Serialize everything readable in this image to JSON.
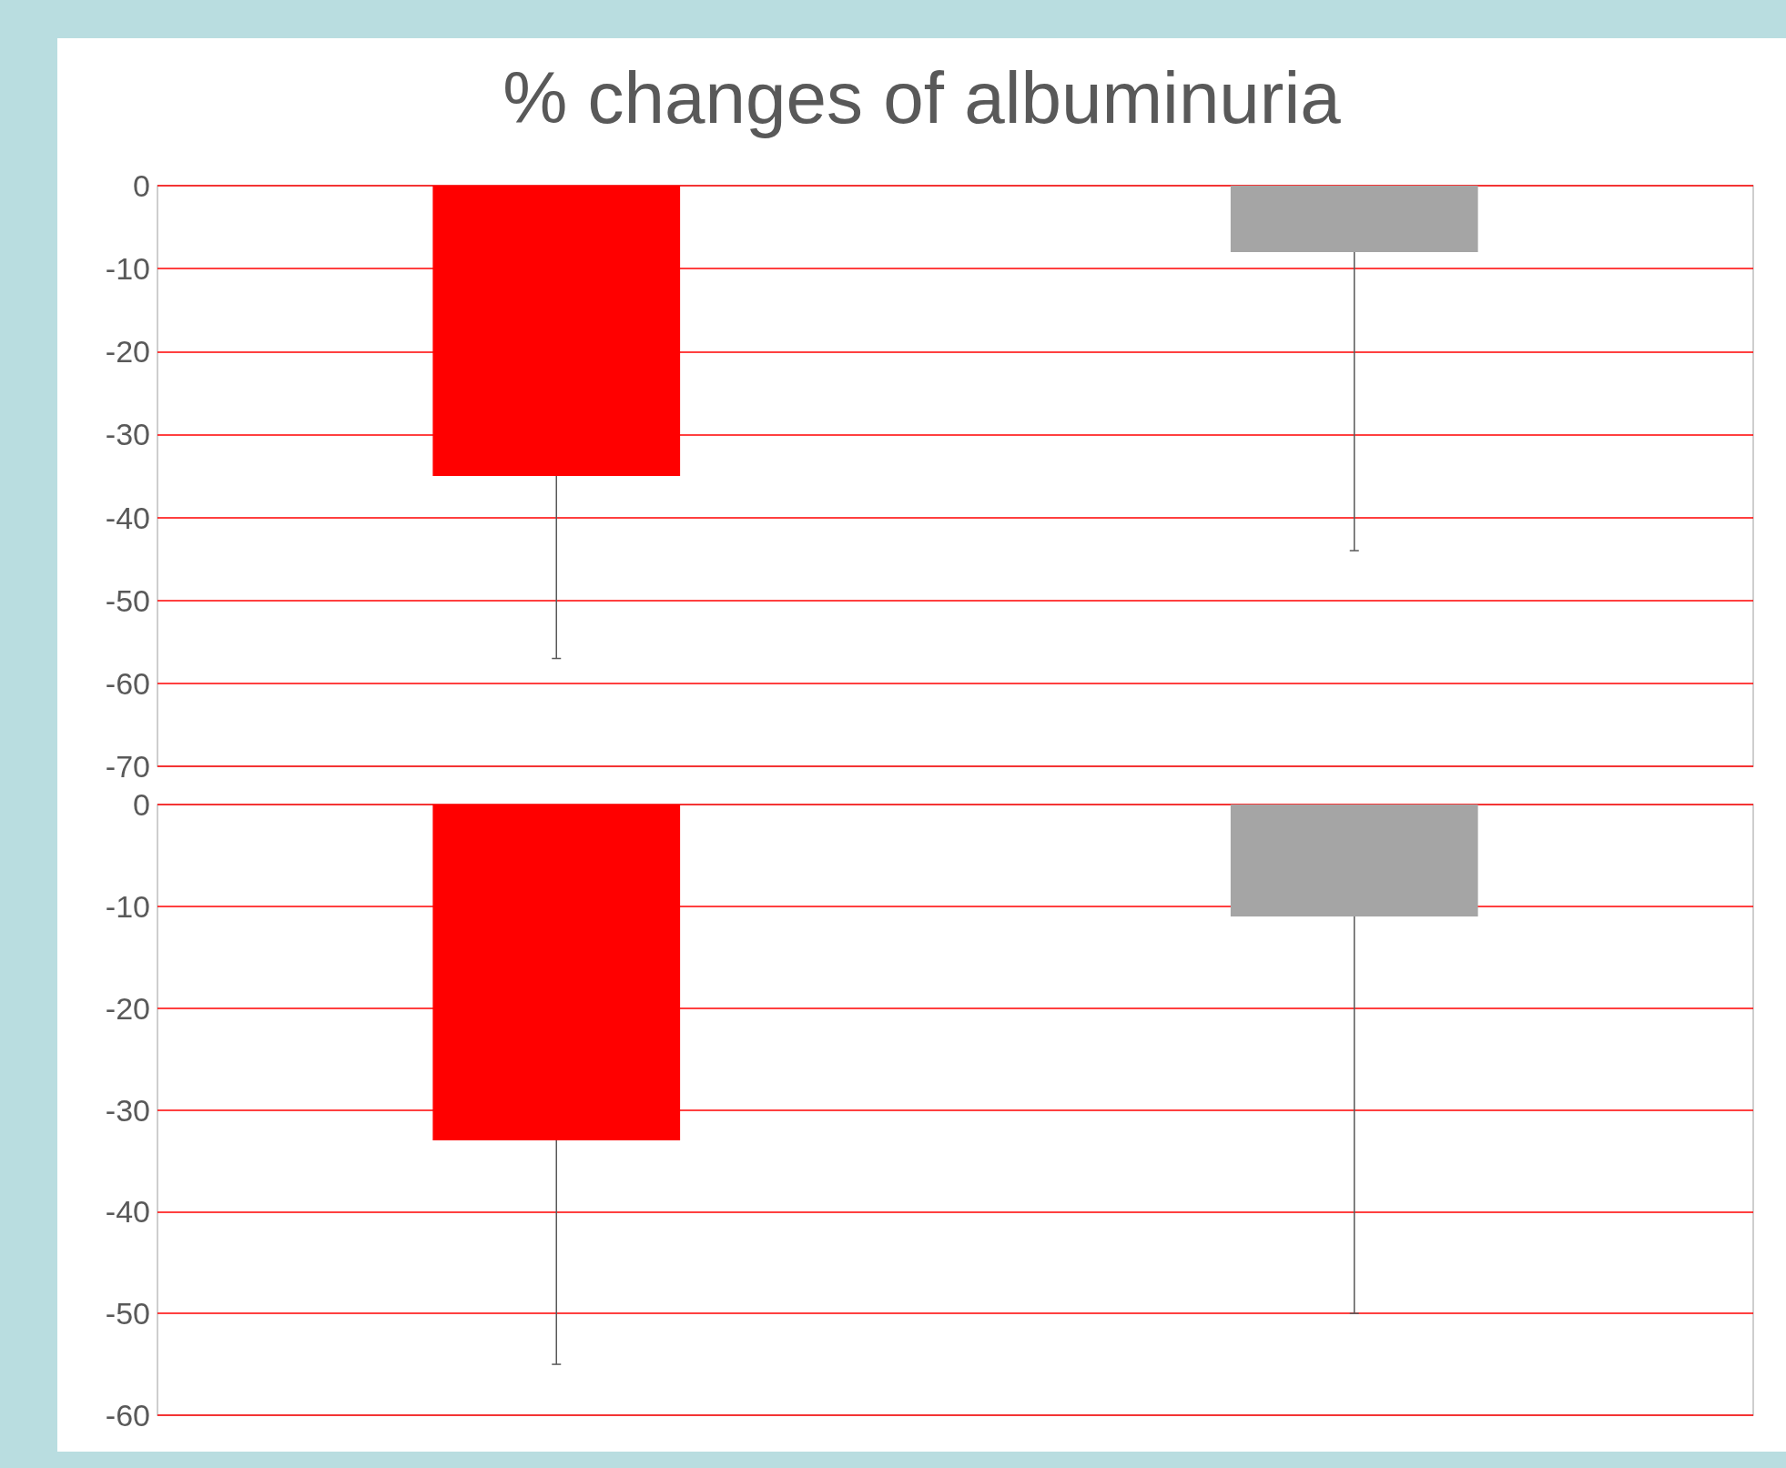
{
  "chart_data": [
    {
      "type": "bar",
      "title": "% changes of albuminuria",
      "categories": [
        null,
        null
      ],
      "values": [
        -35,
        -8
      ],
      "colors": [
        "#ff0000",
        "#a5a5a5"
      ],
      "errors": [
        [
          -57,
          -35
        ],
        [
          -44,
          -8
        ]
      ],
      "ylim": [
        -70,
        0
      ],
      "yticks": [
        -70,
        -60,
        -50,
        -40,
        -30,
        -20,
        -10,
        0
      ],
      "grid": "y",
      "tick_labels": "y"
    },
    {
      "type": "bar",
      "categories": [
        null,
        null
      ],
      "values": [
        -33,
        -11
      ],
      "colors": [
        "#ff0000",
        "#a5a5a5"
      ],
      "errors": [
        [
          -55,
          -33
        ],
        [
          -50,
          -11
        ]
      ],
      "ylim": [
        -60,
        0
      ],
      "yticks": [
        -60,
        -50,
        -40,
        -30,
        -20,
        -10,
        0
      ],
      "grid": "y",
      "tick_labels": "y"
    }
  ]
}
